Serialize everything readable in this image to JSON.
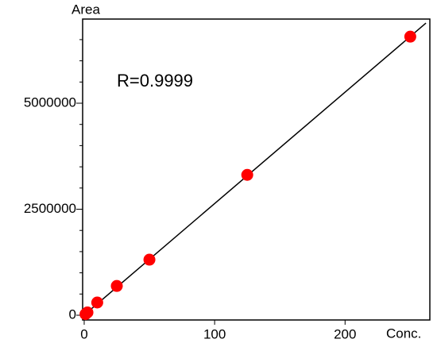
{
  "chart_data": {
    "type": "scatter",
    "y_label": "Area",
    "x_label": "Conc.",
    "annotation": "R=0.9999",
    "series": [
      {
        "color": "#ff0000",
        "x": [
          1,
          2.5,
          10,
          25,
          50,
          125,
          250
        ],
        "values": [
          26000,
          66000,
          300000,
          690000,
          1310000,
          3310000,
          6570000
        ]
      }
    ],
    "fit_line": {
      "color": "#000000",
      "x": [
        -1,
        262
      ],
      "values": [
        -20000,
        6890000
      ]
    },
    "xlim": [
      -1.2,
      265
    ],
    "xticks": [
      0,
      100,
      200
    ],
    "ylim": [
      -112000,
      6985000
    ],
    "yticks": [
      0,
      2500000,
      5000000
    ],
    "yminorticks": [
      500000,
      1000000,
      1500000,
      2000000,
      3000000,
      3500000,
      4000000,
      4500000,
      5500000,
      6000000,
      6500000
    ]
  }
}
